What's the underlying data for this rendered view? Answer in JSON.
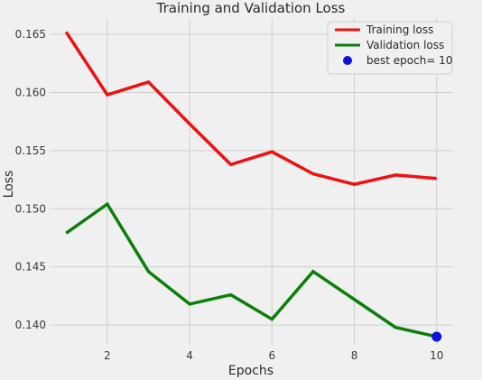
{
  "chart_data": {
    "type": "line",
    "title": "Training and Validation Loss",
    "xlabel": "Epochs",
    "ylabel": "Loss",
    "x": [
      1,
      2,
      3,
      4,
      5,
      6,
      7,
      8,
      9,
      10
    ],
    "xlim": [
      0.6,
      10.4
    ],
    "ylim": [
      0.1383,
      0.1664
    ],
    "xticks": [
      2,
      4,
      6,
      8,
      10
    ],
    "yticks": [
      0.14,
      0.145,
      0.15,
      0.155,
      0.16,
      0.165
    ],
    "ytick_labels": [
      "0.140",
      "0.145",
      "0.150",
      "0.155",
      "0.160",
      "0.165"
    ],
    "grid": true,
    "legend_position": "top-right",
    "series": [
      {
        "name": "Training loss",
        "color": "#ee1111",
        "values": [
          0.1652,
          0.1598,
          0.1609,
          0.1573,
          0.1538,
          0.1549,
          0.153,
          0.1521,
          0.1529,
          0.1526
        ]
      },
      {
        "name": "Validation loss",
        "color": "#0a800a",
        "values": [
          0.1479,
          0.1504,
          0.1446,
          0.1418,
          0.1426,
          0.1405,
          0.1446,
          0.1422,
          0.1398,
          0.139
        ]
      }
    ],
    "marker": {
      "label": "best epoch= 10",
      "x": 10,
      "y": 0.139,
      "color": "#1010dd"
    }
  }
}
